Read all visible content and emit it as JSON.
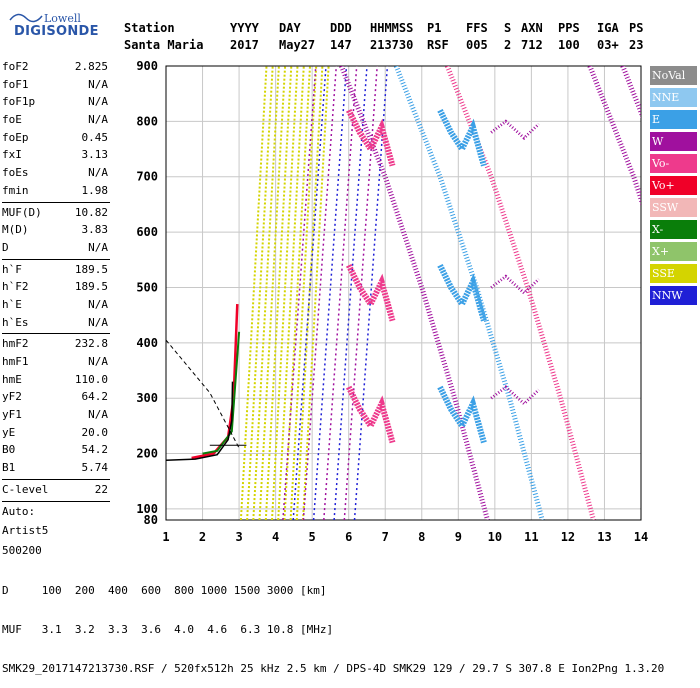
{
  "logo": {
    "line1": "Lowell",
    "line2": "DIGISONDE"
  },
  "header": {
    "row1": [
      "Station",
      "YYYY",
      "DAY",
      "DDD",
      "HHMMSS",
      "P1",
      "FFS",
      "S",
      "AXN",
      "PPS",
      "IGA",
      "PS"
    ],
    "row2": [
      "Santa Maria",
      "2017",
      "May27",
      "147",
      "213730",
      "RSF",
      "005",
      "2",
      "712",
      "100",
      "03+",
      "23"
    ]
  },
  "params": [
    {
      "k": "foF2",
      "v": "2.825"
    },
    {
      "k": "foF1",
      "v": "N/A"
    },
    {
      "k": "foF1p",
      "v": "N/A"
    },
    {
      "k": "foE",
      "v": "N/A"
    },
    {
      "k": "foEp",
      "v": "0.45"
    },
    {
      "k": "fxI",
      "v": "3.13"
    },
    {
      "k": "foEs",
      "v": "N/A"
    },
    {
      "k": "fmin",
      "v": "1.98"
    },
    {
      "sep": true
    },
    {
      "k": "MUF(D)",
      "v": "10.82"
    },
    {
      "k": "M(D)",
      "v": "3.83"
    },
    {
      "k": "D",
      "v": "N/A"
    },
    {
      "sep": true
    },
    {
      "k": "h`F",
      "v": "189.5"
    },
    {
      "k": "h`F2",
      "v": "189.5"
    },
    {
      "k": "h`E",
      "v": "N/A"
    },
    {
      "k": "h`Es",
      "v": "N/A"
    },
    {
      "sep": true
    },
    {
      "k": "hmF2",
      "v": "232.8"
    },
    {
      "k": "hmF1",
      "v": "N/A"
    },
    {
      "k": "hmE",
      "v": "110.0"
    },
    {
      "k": "yF2",
      "v": "64.2"
    },
    {
      "k": "yF1",
      "v": "N/A"
    },
    {
      "k": "yE",
      "v": "20.0"
    },
    {
      "k": "B0",
      "v": "54.2"
    },
    {
      "k": "B1",
      "v": "5.74"
    },
    {
      "sep": true
    },
    {
      "k": "C-level",
      "v": "22"
    },
    {
      "sep": true
    },
    {
      "text": "Auto:"
    },
    {
      "text": "Artist5"
    },
    {
      "text": "500200"
    }
  ],
  "legend": [
    {
      "label": "NoVal",
      "color": "#8c8c8c"
    },
    {
      "label": "NNE",
      "color": "#8ec8f0"
    },
    {
      "label": "E",
      "color": "#3ba0e6"
    },
    {
      "label": "W",
      "color": "#a0109e"
    },
    {
      "label": "Vo-",
      "color": "#ee3a8c"
    },
    {
      "label": "Vo+",
      "color": "#f00028"
    },
    {
      "label": "SSW",
      "color": "#f2b7b7"
    },
    {
      "label": "X-",
      "color": "#0a7e0a"
    },
    {
      "label": "X+",
      "color": "#8fc46a"
    },
    {
      "label": "SSE",
      "color": "#d4d400"
    },
    {
      "label": "NNW",
      "color": "#1f1fd6"
    }
  ],
  "chart_data": {
    "type": "scatter",
    "xlim": [
      1,
      14
    ],
    "ylim": [
      80,
      900
    ],
    "x_ticks": [
      "1",
      "2",
      "3",
      "4",
      "5",
      "6",
      "7",
      "8",
      "9",
      "10",
      "11",
      "12",
      "13",
      "14"
    ],
    "y_ticks": [
      "100",
      "200",
      "300",
      "400",
      "500",
      "600",
      "700",
      "800",
      "900"
    ],
    "y_bottom_label": "80",
    "grid": true
  },
  "footer": {
    "line1": "D     100  200  400  600  800 1000 1500 3000 [km]",
    "line2": "MUF   3.1  3.2  3.3  3.6  4.0  4.6  6.3 10.8 [MHz]",
    "line3": "SMK29_2017147213730.RSF / 520fx512h 25 kHz 2.5 km / DPS-4D SMK29 129 / 29.7 S 307.8 E Ion2Png 1.3.20"
  }
}
